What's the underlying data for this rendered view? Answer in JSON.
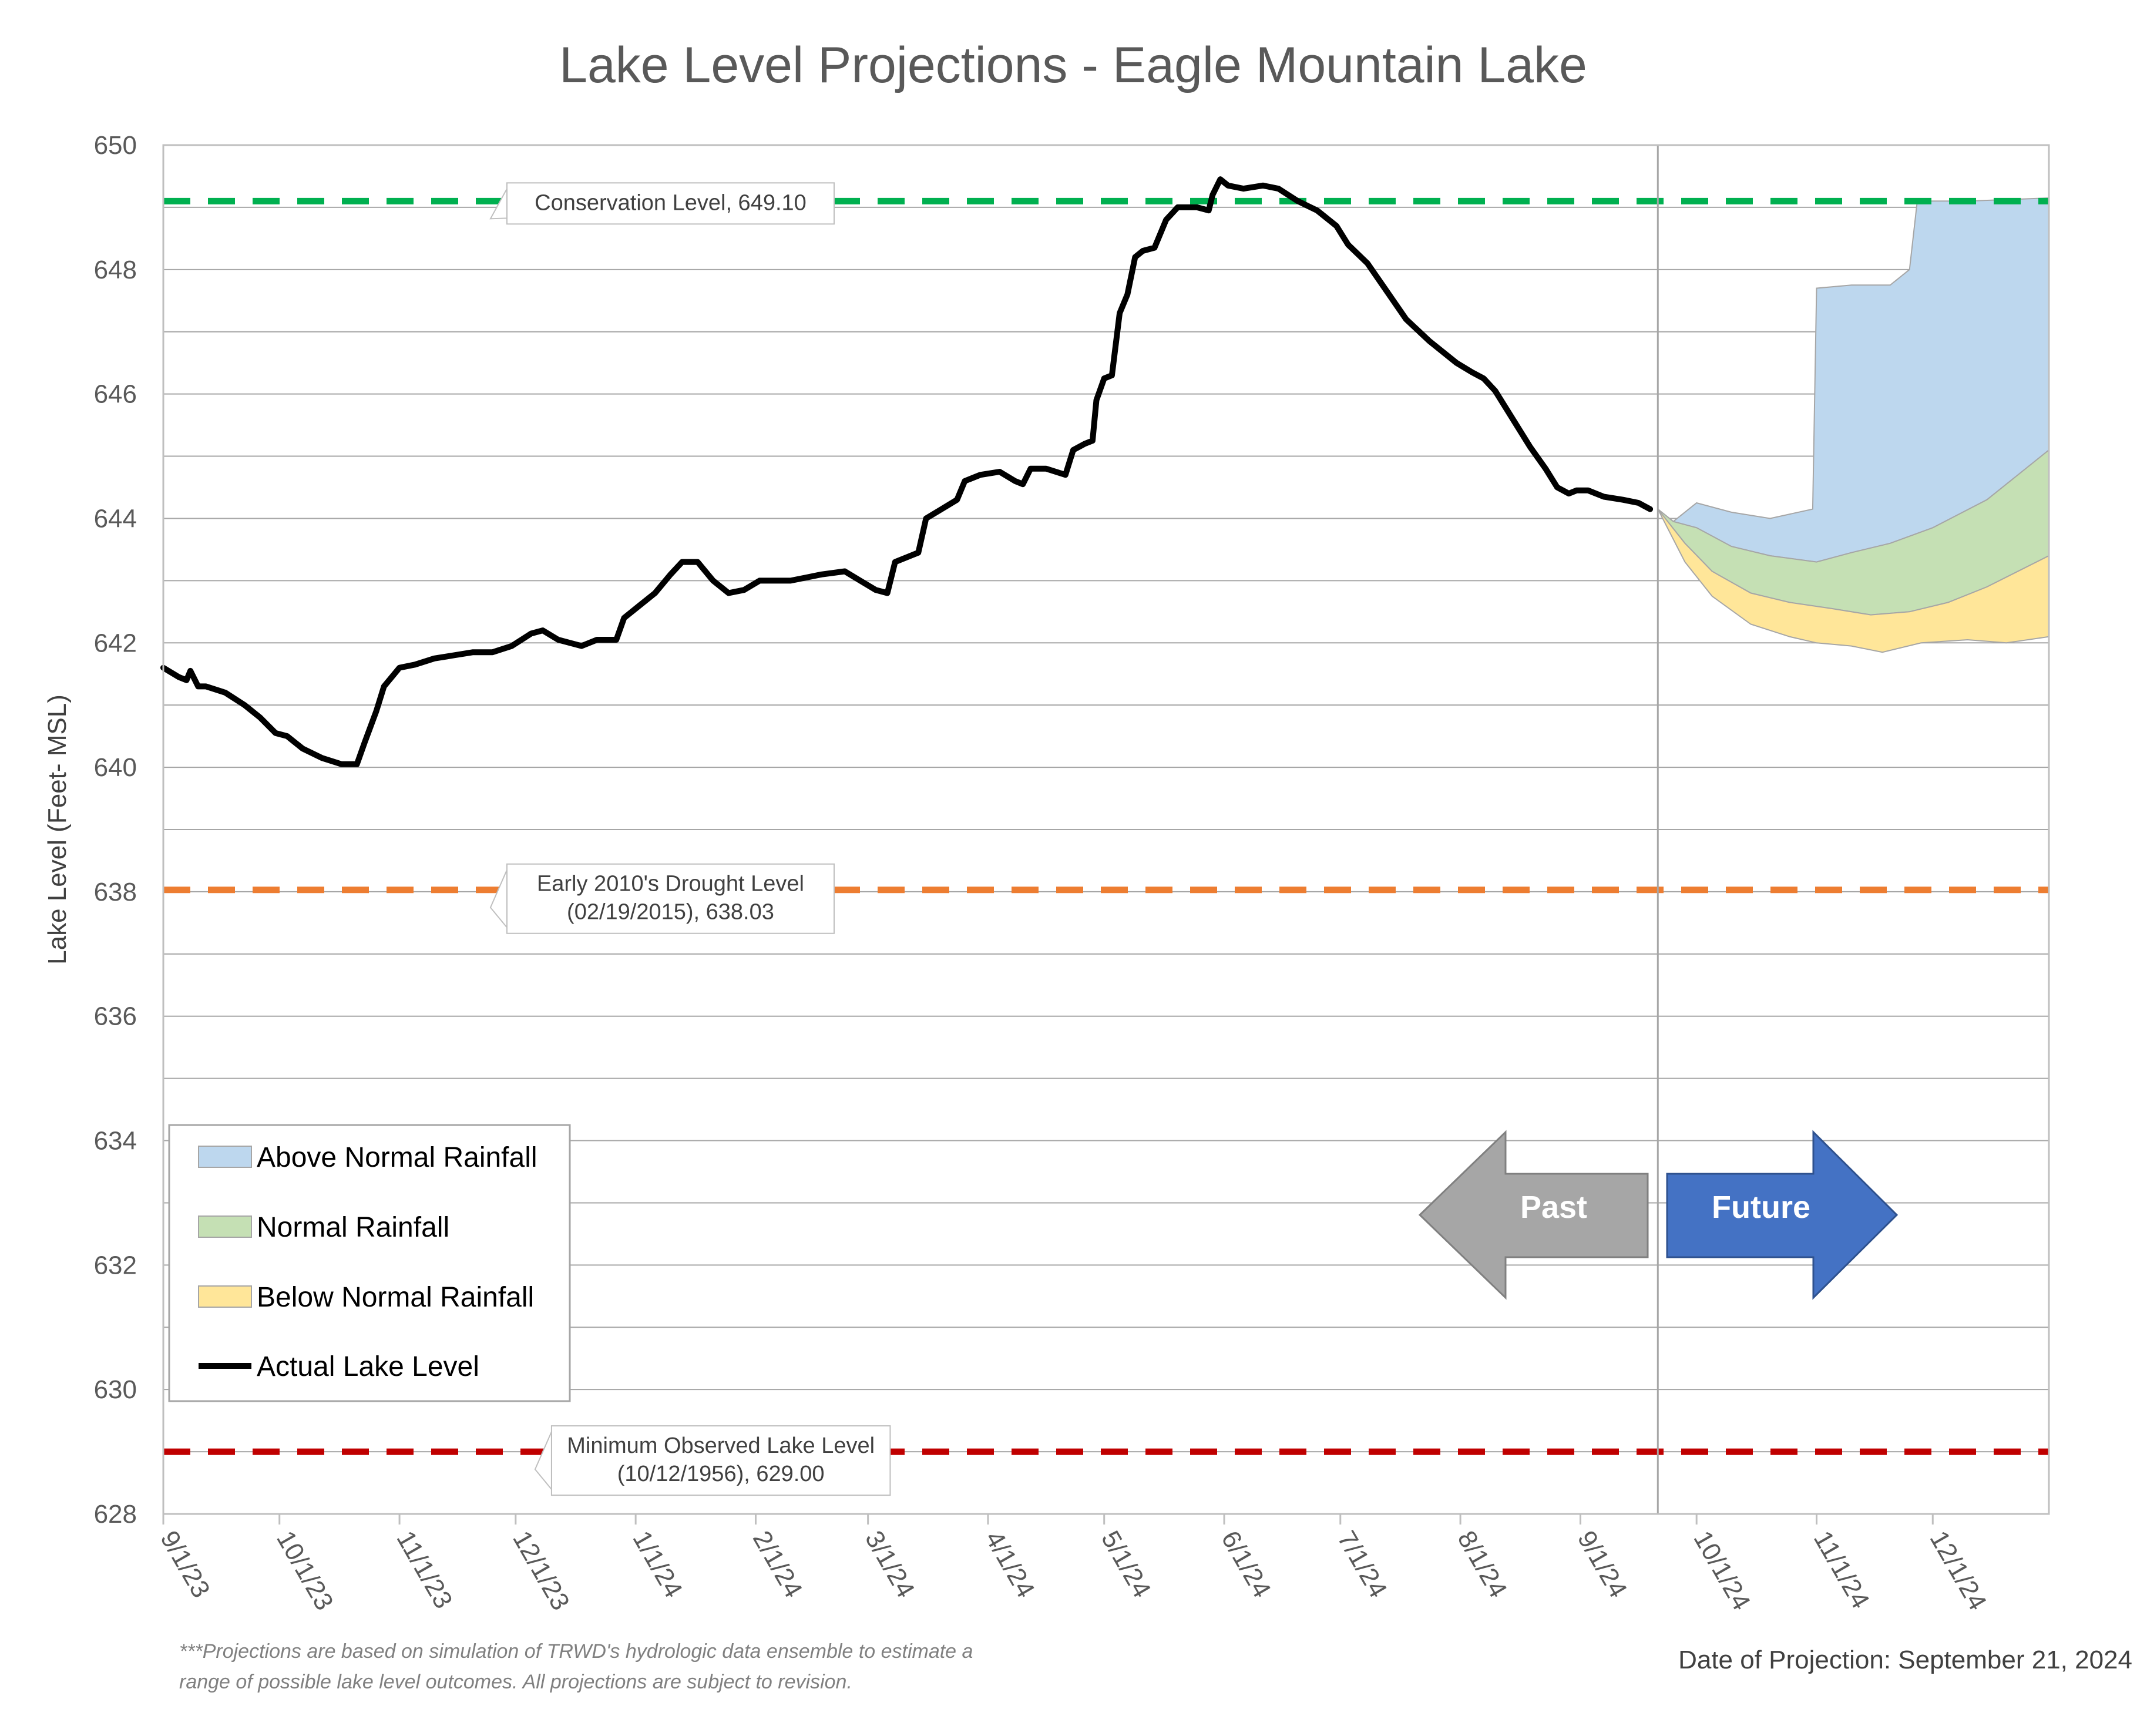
{
  "chart_data": {
    "type": "line",
    "title": "Lake Level Projections - Eagle Mountain Lake",
    "ylabel": "Lake Level (Feet- MSL)",
    "xlabel": "",
    "ylim": [
      628,
      650
    ],
    "yticks": [
      628,
      630,
      632,
      634,
      636,
      638,
      640,
      642,
      644,
      646,
      648,
      650
    ],
    "xlim": [
      "2023-09-01",
      "2024-12-31"
    ],
    "xticks": [
      {
        "date": "2023-09-01",
        "label": "9/1/23"
      },
      {
        "date": "2023-10-01",
        "label": "10/1/23"
      },
      {
        "date": "2023-11-01",
        "label": "11/1/23"
      },
      {
        "date": "2023-12-01",
        "label": "12/1/23"
      },
      {
        "date": "2024-01-01",
        "label": "1/1/24"
      },
      {
        "date": "2024-02-01",
        "label": "2/1/24"
      },
      {
        "date": "2024-03-01",
        "label": "3/1/24"
      },
      {
        "date": "2024-04-01",
        "label": "4/1/24"
      },
      {
        "date": "2024-05-01",
        "label": "5/1/24"
      },
      {
        "date": "2024-06-01",
        "label": "6/1/24"
      },
      {
        "date": "2024-07-01",
        "label": "7/1/24"
      },
      {
        "date": "2024-08-01",
        "label": "8/1/24"
      },
      {
        "date": "2024-09-01",
        "label": "9/1/24"
      },
      {
        "date": "2024-10-01",
        "label": "10/1/24"
      },
      {
        "date": "2024-11-01",
        "label": "11/1/24"
      },
      {
        "date": "2024-12-01",
        "label": "12/1/24"
      }
    ],
    "grid": true,
    "legend_position": "bottom-left",
    "projection_date": "2024-09-21",
    "reference_lines": [
      {
        "name": "Conservation Level",
        "value": 649.1,
        "color": "#00b050",
        "label": "Conservation Level, 649.10",
        "label_date": "2024-01-10"
      },
      {
        "name": "Early 2010's Drought Level",
        "value": 638.03,
        "color": "#ed7d31",
        "label_lines": [
          "Early 2010's Drought Level",
          "(02/19/2015), 638.03"
        ],
        "label_date": "2024-01-10"
      },
      {
        "name": "Minimum Observed Lake Level",
        "value": 629.0,
        "color": "#c00000",
        "label_lines": [
          "Minimum Observed Lake Level",
          "(10/12/1956), 629.00"
        ],
        "label_date": "2024-01-23"
      }
    ],
    "series": [
      {
        "name": "Actual Lake Level",
        "type": "line",
        "color": "#000000",
        "points": [
          [
            "2023-09-01",
            641.6
          ],
          [
            "2023-09-05",
            641.45
          ],
          [
            "2023-09-07",
            641.4
          ],
          [
            "2023-09-08",
            641.55
          ],
          [
            "2023-09-10",
            641.3
          ],
          [
            "2023-09-12",
            641.3
          ],
          [
            "2023-09-17",
            641.2
          ],
          [
            "2023-09-22",
            641.0
          ],
          [
            "2023-09-26",
            640.8
          ],
          [
            "2023-09-30",
            640.55
          ],
          [
            "2023-10-03",
            640.5
          ],
          [
            "2023-10-07",
            640.3
          ],
          [
            "2023-10-12",
            640.15
          ],
          [
            "2023-10-17",
            640.05
          ],
          [
            "2023-10-21",
            640.05
          ],
          [
            "2023-10-23",
            640.4
          ],
          [
            "2023-10-26",
            640.9
          ],
          [
            "2023-10-28",
            641.3
          ],
          [
            "2023-11-01",
            641.6
          ],
          [
            "2023-11-05",
            641.65
          ],
          [
            "2023-11-10",
            641.75
          ],
          [
            "2023-11-15",
            641.8
          ],
          [
            "2023-11-20",
            641.85
          ],
          [
            "2023-11-25",
            641.85
          ],
          [
            "2023-11-30",
            641.95
          ],
          [
            "2023-12-05",
            642.15
          ],
          [
            "2023-12-08",
            642.2
          ],
          [
            "2023-12-12",
            642.05
          ],
          [
            "2023-12-18",
            641.95
          ],
          [
            "2023-12-22",
            642.05
          ],
          [
            "2023-12-27",
            642.05
          ],
          [
            "2023-12-29",
            642.4
          ],
          [
            "2024-01-02",
            642.6
          ],
          [
            "2024-01-06",
            642.8
          ],
          [
            "2024-01-10",
            643.1
          ],
          [
            "2024-01-13",
            643.3
          ],
          [
            "2024-01-17",
            643.3
          ],
          [
            "2024-01-21",
            643.0
          ],
          [
            "2024-01-25",
            642.8
          ],
          [
            "2024-01-29",
            642.85
          ],
          [
            "2024-02-02",
            643.0
          ],
          [
            "2024-02-06",
            643.0
          ],
          [
            "2024-02-10",
            643.0
          ],
          [
            "2024-02-14",
            643.05
          ],
          [
            "2024-02-18",
            643.1
          ],
          [
            "2024-02-24",
            643.15
          ],
          [
            "2024-02-28",
            643.0
          ],
          [
            "2024-03-03",
            642.85
          ],
          [
            "2024-03-06",
            642.8
          ],
          [
            "2024-03-08",
            643.3
          ],
          [
            "2024-03-12",
            643.4
          ],
          [
            "2024-03-14",
            643.45
          ],
          [
            "2024-03-16",
            644.0
          ],
          [
            "2024-03-20",
            644.15
          ],
          [
            "2024-03-24",
            644.3
          ],
          [
            "2024-03-26",
            644.6
          ],
          [
            "2024-03-30",
            644.7
          ],
          [
            "2024-04-04",
            644.75
          ],
          [
            "2024-04-08",
            644.6
          ],
          [
            "2024-04-10",
            644.55
          ],
          [
            "2024-04-12",
            644.8
          ],
          [
            "2024-04-16",
            644.8
          ],
          [
            "2024-04-21",
            644.7
          ],
          [
            "2024-04-23",
            645.1
          ],
          [
            "2024-04-26",
            645.2
          ],
          [
            "2024-04-28",
            645.25
          ],
          [
            "2024-04-29",
            645.9
          ],
          [
            "2024-05-01",
            646.25
          ],
          [
            "2024-05-03",
            646.3
          ],
          [
            "2024-05-05",
            647.3
          ],
          [
            "2024-05-07",
            647.6
          ],
          [
            "2024-05-09",
            648.2
          ],
          [
            "2024-05-11",
            648.3
          ],
          [
            "2024-05-14",
            648.35
          ],
          [
            "2024-05-17",
            648.8
          ],
          [
            "2024-05-20",
            649.0
          ],
          [
            "2024-05-25",
            649.0
          ],
          [
            "2024-05-28",
            648.95
          ],
          [
            "2024-05-29",
            649.2
          ],
          [
            "2024-05-31",
            649.45
          ],
          [
            "2024-06-02",
            649.35
          ],
          [
            "2024-06-06",
            649.3
          ],
          [
            "2024-06-11",
            649.35
          ],
          [
            "2024-06-15",
            649.3
          ],
          [
            "2024-06-20",
            649.1
          ],
          [
            "2024-06-25",
            648.95
          ],
          [
            "2024-06-30",
            648.7
          ],
          [
            "2024-07-03",
            648.4
          ],
          [
            "2024-07-08",
            648.1
          ],
          [
            "2024-07-13",
            647.65
          ],
          [
            "2024-07-18",
            647.2
          ],
          [
            "2024-07-24",
            646.85
          ],
          [
            "2024-07-31",
            646.5
          ],
          [
            "2024-08-04",
            646.35
          ],
          [
            "2024-08-07",
            646.25
          ],
          [
            "2024-08-10",
            646.05
          ],
          [
            "2024-08-14",
            645.65
          ],
          [
            "2024-08-19",
            645.15
          ],
          [
            "2024-08-23",
            644.8
          ],
          [
            "2024-08-26",
            644.5
          ],
          [
            "2024-08-29",
            644.4
          ],
          [
            "2024-08-31",
            644.45
          ],
          [
            "2024-09-03",
            644.45
          ],
          [
            "2024-09-07",
            644.35
          ],
          [
            "2024-09-12",
            644.3
          ],
          [
            "2024-09-16",
            644.25
          ],
          [
            "2024-09-19",
            644.15
          ]
        ]
      },
      {
        "name": "Above Normal Rainfall",
        "type": "band",
        "fill": "#bdd7ee",
        "stroke": "#a6a6a6",
        "upper": [
          [
            "2024-09-21",
            644.15
          ],
          [
            "2024-09-25",
            643.95
          ],
          [
            "2024-10-01",
            644.25
          ],
          [
            "2024-10-10",
            644.1
          ],
          [
            "2024-10-20",
            644.0
          ],
          [
            "2024-10-31",
            644.15
          ],
          [
            "2024-11-01",
            647.7
          ],
          [
            "2024-11-10",
            647.75
          ],
          [
            "2024-11-20",
            647.75
          ],
          [
            "2024-11-25",
            648.0
          ],
          [
            "2024-11-27",
            649.1
          ],
          [
            "2024-12-10",
            649.1
          ],
          [
            "2024-12-31",
            649.15
          ]
        ],
        "lower": [
          [
            "2024-09-21",
            644.15
          ],
          [
            "2024-09-25",
            643.95
          ],
          [
            "2024-10-01",
            643.85
          ],
          [
            "2024-10-10",
            643.55
          ],
          [
            "2024-10-20",
            643.4
          ],
          [
            "2024-11-01",
            643.3
          ],
          [
            "2024-11-10",
            643.45
          ],
          [
            "2024-11-20",
            643.6
          ],
          [
            "2024-12-01",
            643.85
          ],
          [
            "2024-12-15",
            644.3
          ],
          [
            "2024-12-31",
            645.1
          ]
        ]
      },
      {
        "name": "Normal Rainfall",
        "type": "band",
        "fill": "#c5e0b4",
        "stroke": "#a6a6a6",
        "upper": [
          [
            "2024-09-21",
            644.15
          ],
          [
            "2024-09-25",
            643.95
          ],
          [
            "2024-10-01",
            643.85
          ],
          [
            "2024-10-10",
            643.55
          ],
          [
            "2024-10-20",
            643.4
          ],
          [
            "2024-11-01",
            643.3
          ],
          [
            "2024-11-10",
            643.45
          ],
          [
            "2024-11-20",
            643.6
          ],
          [
            "2024-12-01",
            643.85
          ],
          [
            "2024-12-15",
            644.3
          ],
          [
            "2024-12-31",
            645.1
          ]
        ],
        "lower": [
          [
            "2024-09-21",
            644.15
          ],
          [
            "2024-09-28",
            643.6
          ],
          [
            "2024-10-05",
            643.15
          ],
          [
            "2024-10-15",
            642.8
          ],
          [
            "2024-10-25",
            642.65
          ],
          [
            "2024-11-05",
            642.55
          ],
          [
            "2024-11-15",
            642.45
          ],
          [
            "2024-11-25",
            642.5
          ],
          [
            "2024-12-05",
            642.65
          ],
          [
            "2024-12-15",
            642.9
          ],
          [
            "2024-12-31",
            643.4
          ]
        ]
      },
      {
        "name": "Below Normal Rainfall",
        "type": "band",
        "fill": "#ffe699",
        "stroke": "#a6a6a6",
        "upper": [
          [
            "2024-09-21",
            644.15
          ],
          [
            "2024-09-28",
            643.6
          ],
          [
            "2024-10-05",
            643.15
          ],
          [
            "2024-10-15",
            642.8
          ],
          [
            "2024-10-25",
            642.65
          ],
          [
            "2024-11-05",
            642.55
          ],
          [
            "2024-11-15",
            642.45
          ],
          [
            "2024-11-25",
            642.5
          ],
          [
            "2024-12-05",
            642.65
          ],
          [
            "2024-12-15",
            642.9
          ],
          [
            "2024-12-31",
            643.4
          ]
        ],
        "lower": [
          [
            "2024-09-21",
            644.15
          ],
          [
            "2024-09-28",
            643.3
          ],
          [
            "2024-10-05",
            642.75
          ],
          [
            "2024-10-15",
            642.3
          ],
          [
            "2024-10-25",
            642.1
          ],
          [
            "2024-11-01",
            642.0
          ],
          [
            "2024-11-10",
            641.95
          ],
          [
            "2024-11-18",
            641.85
          ],
          [
            "2024-11-28",
            642.0
          ],
          [
            "2024-12-10",
            642.05
          ],
          [
            "2024-12-20",
            642.0
          ],
          [
            "2024-12-31",
            642.1
          ]
        ]
      }
    ],
    "legend": [
      {
        "label": "Above Normal Rainfall",
        "kind": "patch",
        "fill": "#bdd7ee"
      },
      {
        "label": "Normal Rainfall",
        "kind": "patch",
        "fill": "#c5e0b4"
      },
      {
        "label": "Below Normal Rainfall",
        "kind": "patch",
        "fill": "#ffe699"
      },
      {
        "label": "Actual Lake Level",
        "kind": "line",
        "color": "#000000"
      }
    ],
    "annotations": {
      "past_label": "Past",
      "future_label": "Future",
      "past_color": "#a6a6a6",
      "future_color": "#4472c4"
    }
  },
  "footnote": {
    "line1": "***Projections are based on simulation of TRWD's hydrologic data ensemble to estimate a",
    "line2": "range of possible lake level outcomes.  All projections are subject to revision."
  },
  "projection_note": "Date of Projection: September 21, 2024"
}
